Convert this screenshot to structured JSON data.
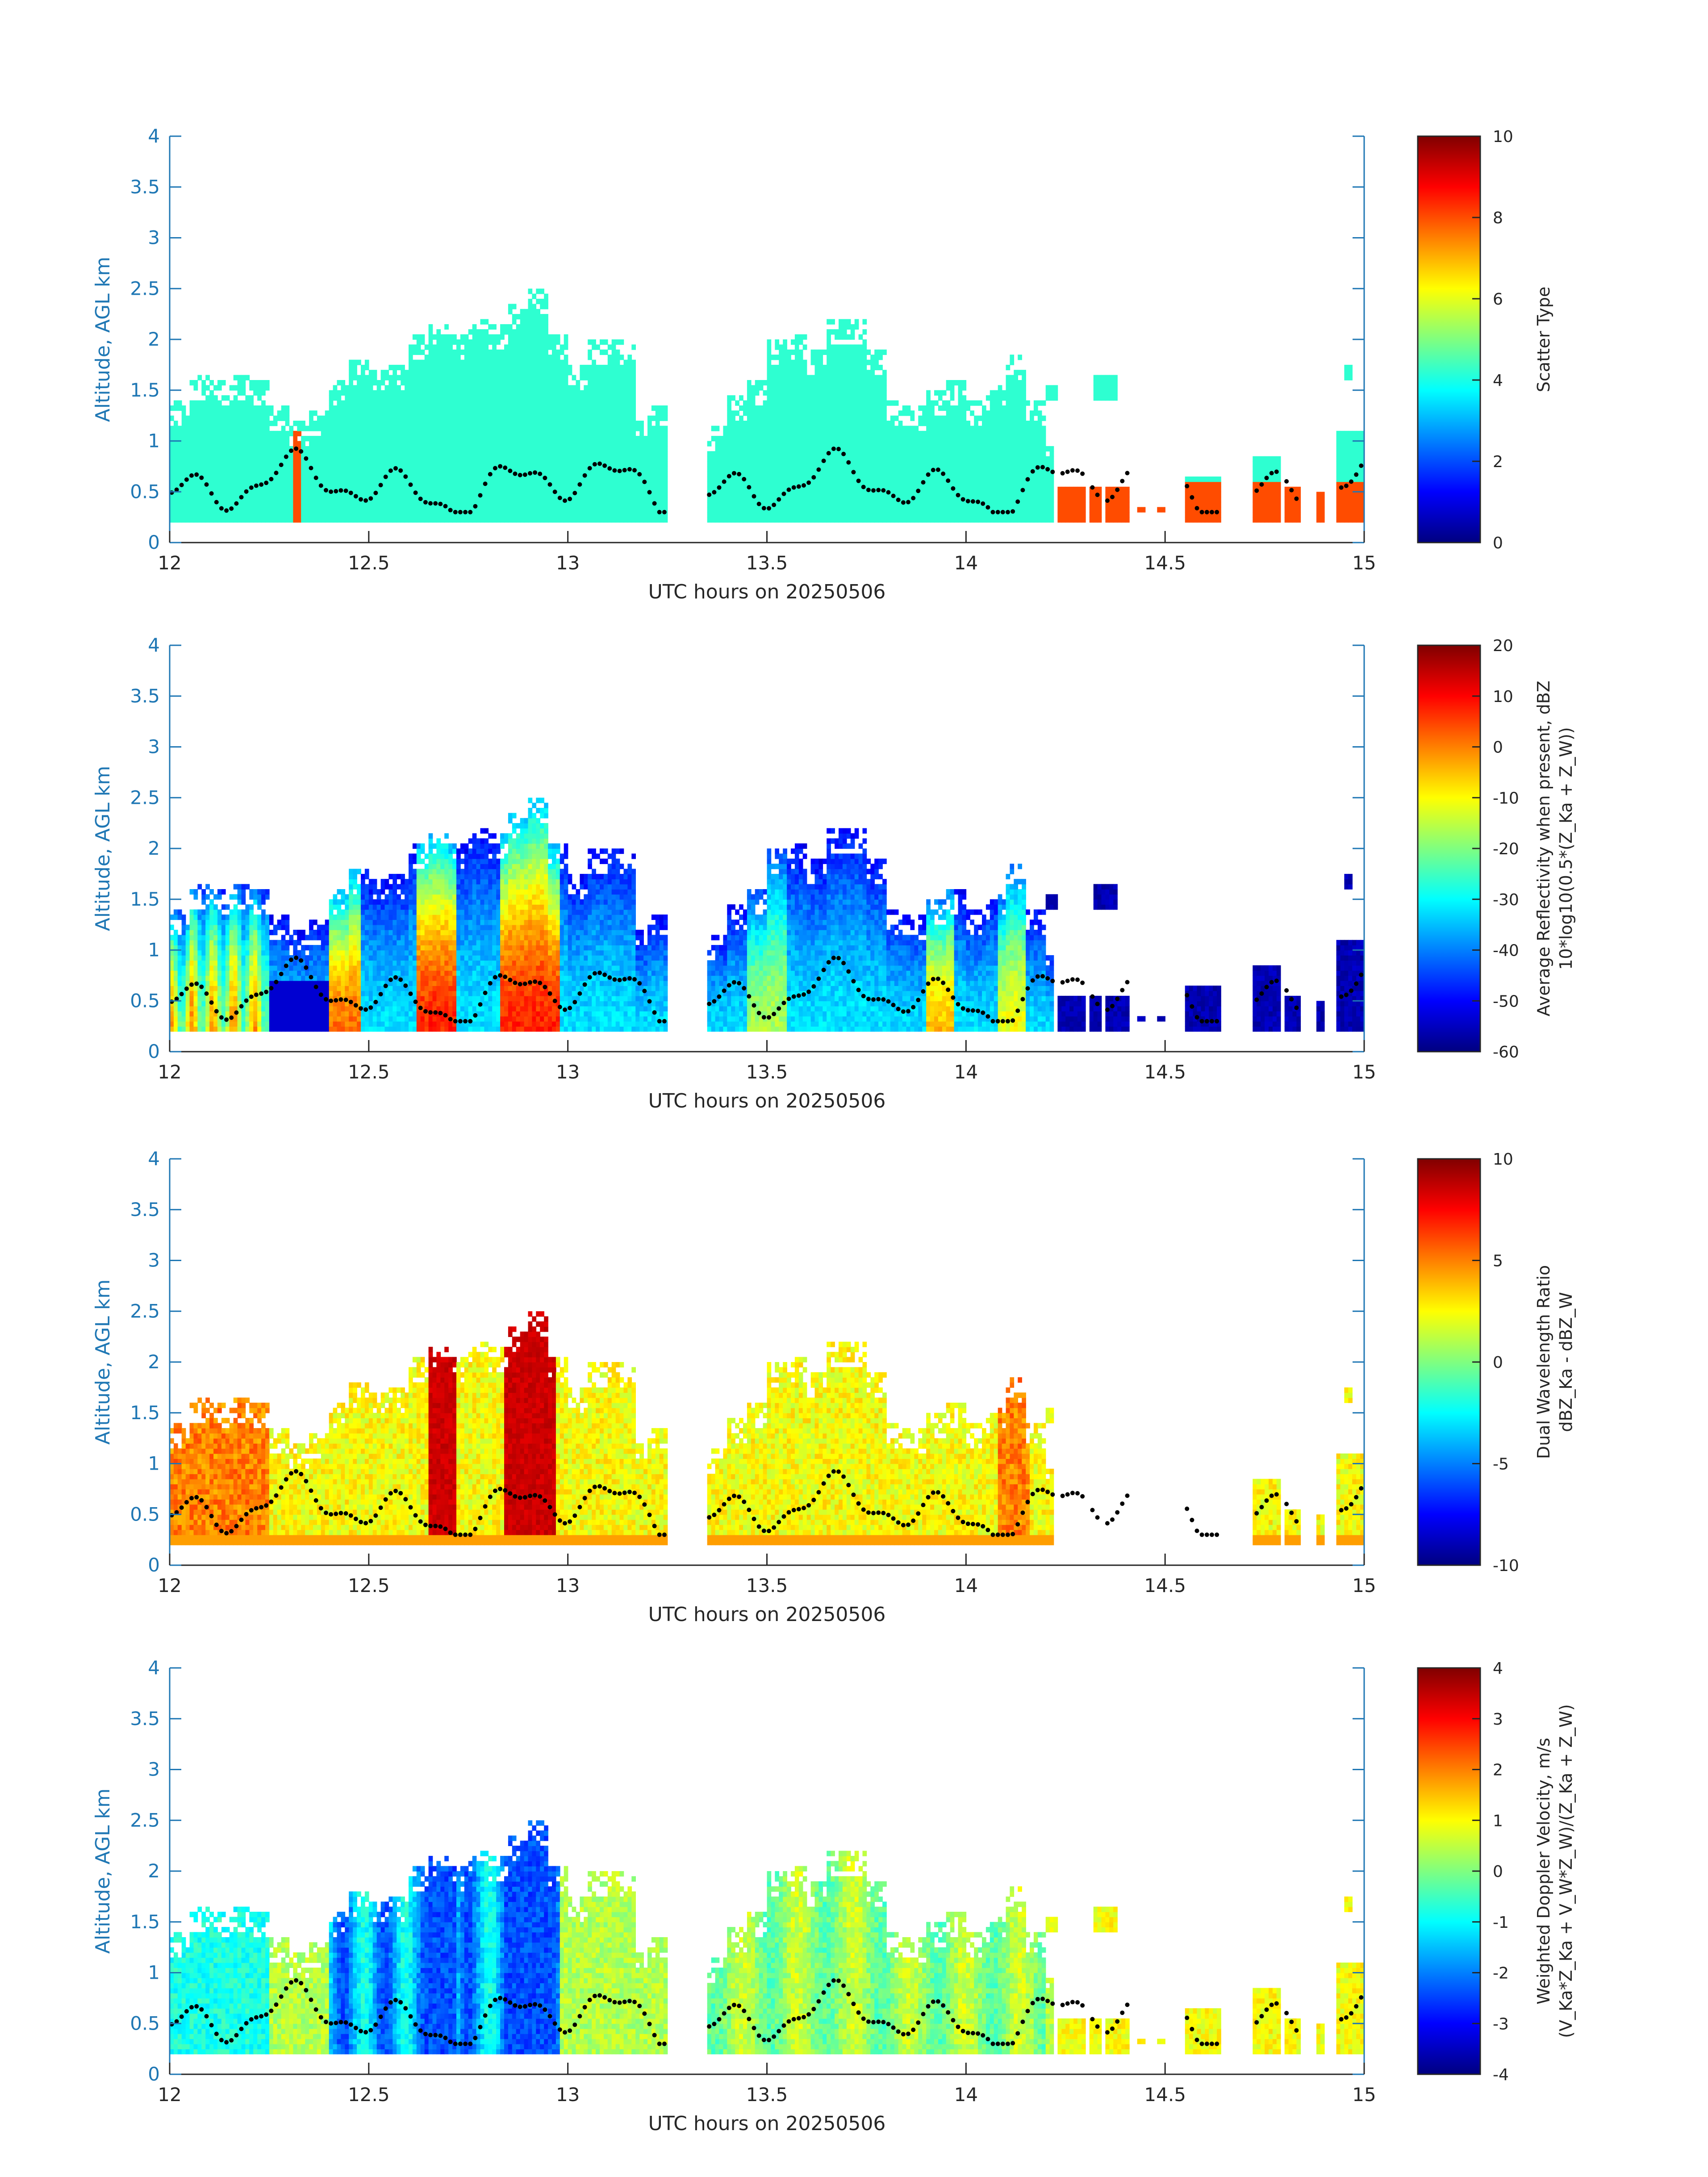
{
  "chart_data": [
    {
      "type": "heatmap",
      "xlabel": "UTC hours on 20250506",
      "ylabel": "Altitude, AGL km",
      "xlim": [
        12,
        15
      ],
      "ylim": [
        0,
        4
      ],
      "xticks": [
        "12",
        "12.5",
        "13",
        "13.5",
        "14",
        "14.5",
        "15"
      ],
      "yticks": [
        "0",
        "0.5",
        "1",
        "1.5",
        "2",
        "2.5",
        "3",
        "3.5",
        "4"
      ],
      "colorbar": {
        "label_lines": [
          "Scatter Type"
        ],
        "range": [
          0,
          10
        ],
        "ticks": [
          "0",
          "2",
          "4",
          "6",
          "8",
          "10"
        ],
        "colormap": "jet"
      },
      "field": "scatter-type"
    },
    {
      "type": "heatmap",
      "xlabel": "UTC hours on 20250506",
      "ylabel": "Altitude, AGL km",
      "xlim": [
        12,
        15
      ],
      "ylim": [
        0,
        4
      ],
      "xticks": [
        "12",
        "12.5",
        "13",
        "13.5",
        "14",
        "14.5",
        "15"
      ],
      "yticks": [
        "0",
        "0.5",
        "1",
        "1.5",
        "2",
        "2.5",
        "3",
        "3.5",
        "4"
      ],
      "colorbar": {
        "label_lines": [
          "Average Reflectivity when present, dBZ",
          "10*log10(0.5*(Z_Ka + Z_W))"
        ],
        "range": [
          -60,
          20
        ],
        "ticks": [
          "-60",
          "-50",
          "-40",
          "-30",
          "-20",
          "-10",
          "0",
          "10",
          "20"
        ],
        "colormap": "jet"
      },
      "field": "reflectivity"
    },
    {
      "type": "heatmap",
      "xlabel": "UTC hours on 20250506",
      "ylabel": "Altitude, AGL km",
      "xlim": [
        12,
        15
      ],
      "ylim": [
        0,
        4
      ],
      "xticks": [
        "12",
        "12.5",
        "13",
        "13.5",
        "14",
        "14.5",
        "15"
      ],
      "yticks": [
        "0",
        "0.5",
        "1",
        "1.5",
        "2",
        "2.5",
        "3",
        "3.5",
        "4"
      ],
      "colorbar": {
        "label_lines": [
          "Dual Wavelength Ratio",
          "dBZ_Ka - dBZ_W"
        ],
        "range": [
          -10,
          10
        ],
        "ticks": [
          "-10",
          "-5",
          "0",
          "5",
          "10"
        ],
        "colormap": "jet"
      },
      "field": "dwr"
    },
    {
      "type": "heatmap",
      "xlabel": "UTC hours on 20250506",
      "ylabel": "Altitude, AGL km",
      "xlim": [
        12,
        15
      ],
      "ylim": [
        0,
        4
      ],
      "xticks": [
        "12",
        "12.5",
        "13",
        "13.5",
        "14",
        "14.5",
        "15"
      ],
      "yticks": [
        "0",
        "0.5",
        "1",
        "1.5",
        "2",
        "2.5",
        "3",
        "3.5",
        "4"
      ],
      "colorbar": {
        "label_lines": [
          "Weighted Doppler Velocity, m/s",
          "(V_Ka*Z_Ka + V_W*Z_W)/(Z_Ka + Z_W)"
        ],
        "range": [
          -4,
          4
        ],
        "ticks": [
          "-4",
          "-3",
          "-2",
          "-1",
          "0",
          "1",
          "2",
          "3",
          "4"
        ],
        "colormap": "jet"
      },
      "field": "velocity"
    }
  ],
  "cloud_tops_km": [
    [
      12.0,
      12.05,
      1.4
    ],
    [
      12.05,
      12.1,
      1.65
    ],
    [
      12.1,
      12.15,
      1.6
    ],
    [
      12.15,
      12.2,
      1.65
    ],
    [
      12.2,
      12.25,
      1.6
    ],
    [
      12.25,
      12.3,
      1.35
    ],
    [
      12.3,
      12.35,
      1.2
    ],
    [
      12.35,
      12.4,
      1.3
    ],
    [
      12.4,
      12.45,
      1.6
    ],
    [
      12.45,
      12.5,
      1.8
    ],
    [
      12.5,
      12.55,
      1.7
    ],
    [
      12.55,
      12.6,
      1.75
    ],
    [
      12.6,
      12.65,
      2.05
    ],
    [
      12.65,
      12.7,
      2.15
    ],
    [
      12.7,
      12.75,
      2.05
    ],
    [
      12.75,
      12.8,
      2.2
    ],
    [
      12.8,
      12.85,
      2.15
    ],
    [
      12.85,
      12.9,
      2.35
    ],
    [
      12.9,
      12.95,
      2.5
    ],
    [
      12.95,
      13.0,
      2.05
    ],
    [
      13.0,
      13.05,
      1.75
    ],
    [
      13.05,
      13.1,
      2.0
    ],
    [
      13.1,
      13.17,
      2.0
    ],
    [
      13.17,
      13.2,
      1.2
    ],
    [
      13.2,
      13.25,
      1.35
    ],
    [
      13.35,
      13.4,
      1.15
    ],
    [
      13.4,
      13.45,
      1.45
    ],
    [
      13.45,
      13.5,
      1.6
    ],
    [
      13.5,
      13.55,
      2.0
    ],
    [
      13.55,
      13.6,
      2.05
    ],
    [
      13.6,
      13.65,
      1.9
    ],
    [
      13.65,
      13.7,
      2.2
    ],
    [
      13.7,
      13.75,
      2.2
    ],
    [
      13.75,
      13.8,
      1.9
    ],
    [
      13.8,
      13.85,
      1.4
    ],
    [
      13.85,
      13.9,
      1.35
    ],
    [
      13.9,
      13.95,
      1.5
    ],
    [
      13.95,
      14.0,
      1.6
    ],
    [
      14.0,
      14.05,
      1.4
    ],
    [
      14.05,
      14.1,
      1.55
    ],
    [
      14.1,
      14.15,
      1.85
    ],
    [
      14.15,
      14.2,
      1.4
    ],
    [
      14.2,
      14.22,
      1.0
    ]
  ],
  "isolated_echoes_km": [
    [
      14.2,
      14.23,
      1.4,
      1.55
    ],
    [
      14.32,
      14.38,
      1.38,
      1.65
    ],
    [
      14.23,
      14.3,
      0.2,
      0.55
    ],
    [
      14.31,
      14.34,
      0.2,
      0.55
    ],
    [
      14.35,
      14.41,
      0.2,
      0.55
    ],
    [
      14.43,
      14.45,
      0.3,
      0.35
    ],
    [
      14.48,
      14.5,
      0.3,
      0.35
    ],
    [
      14.55,
      14.64,
      0.2,
      0.65
    ],
    [
      14.72,
      14.79,
      0.2,
      0.85
    ],
    [
      14.8,
      14.84,
      0.2,
      0.55
    ],
    [
      14.88,
      14.9,
      0.2,
      0.5
    ],
    [
      14.93,
      15.0,
      0.2,
      1.1
    ],
    [
      14.95,
      14.97,
      1.6,
      1.75
    ]
  ]
}
